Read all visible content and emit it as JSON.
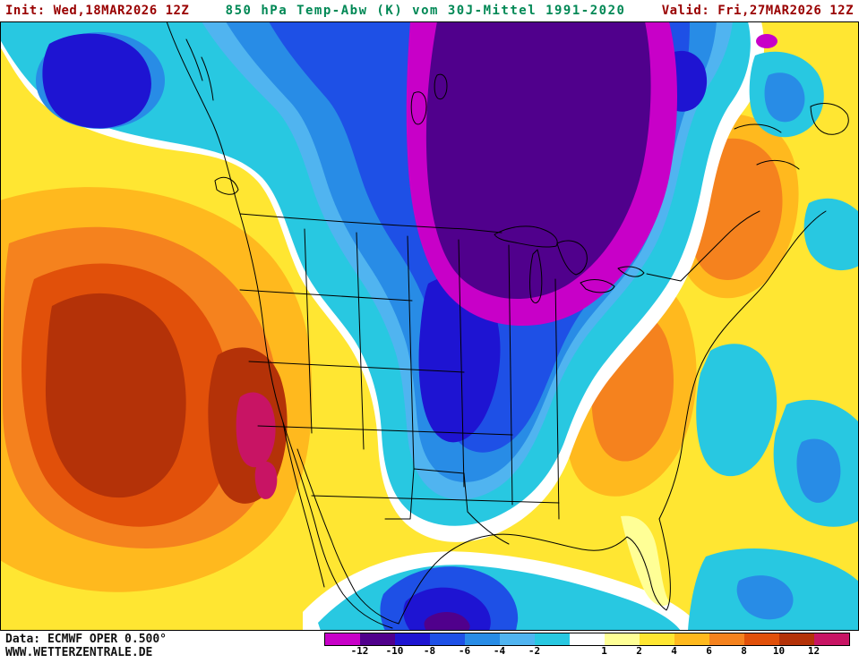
{
  "header": {
    "init": "Init: Wed,18MAR2026 12Z",
    "title": "850 hPa Temp-Abw (K) vom 30J-Mittel 1991-2020",
    "valid": "Valid: Fri,27MAR2026 12Z",
    "init_color": "#990000",
    "title_color": "#008855",
    "valid_color": "#990000"
  },
  "footer": {
    "data_source": "Data: ECMWF OPER 0.500°",
    "website": "WWW.WETTERZENTRALE.DE"
  },
  "legend": {
    "unit": "K",
    "colors": [
      "#c800c8",
      "#50008c",
      "#1e14d2",
      "#1e50e6",
      "#288ce6",
      "#50b4f0",
      "#28c8e1",
      "#ffffff",
      "#ffff96",
      "#ffe632",
      "#ffb91e",
      "#f5821e",
      "#e1500a",
      "#b43208",
      "#c81464"
    ],
    "ticks": [
      "-12",
      "-10",
      "-8",
      "-6",
      "-4",
      "-2",
      "",
      "1",
      "2",
      "4",
      "6",
      "8",
      "10",
      "12"
    ]
  }
}
